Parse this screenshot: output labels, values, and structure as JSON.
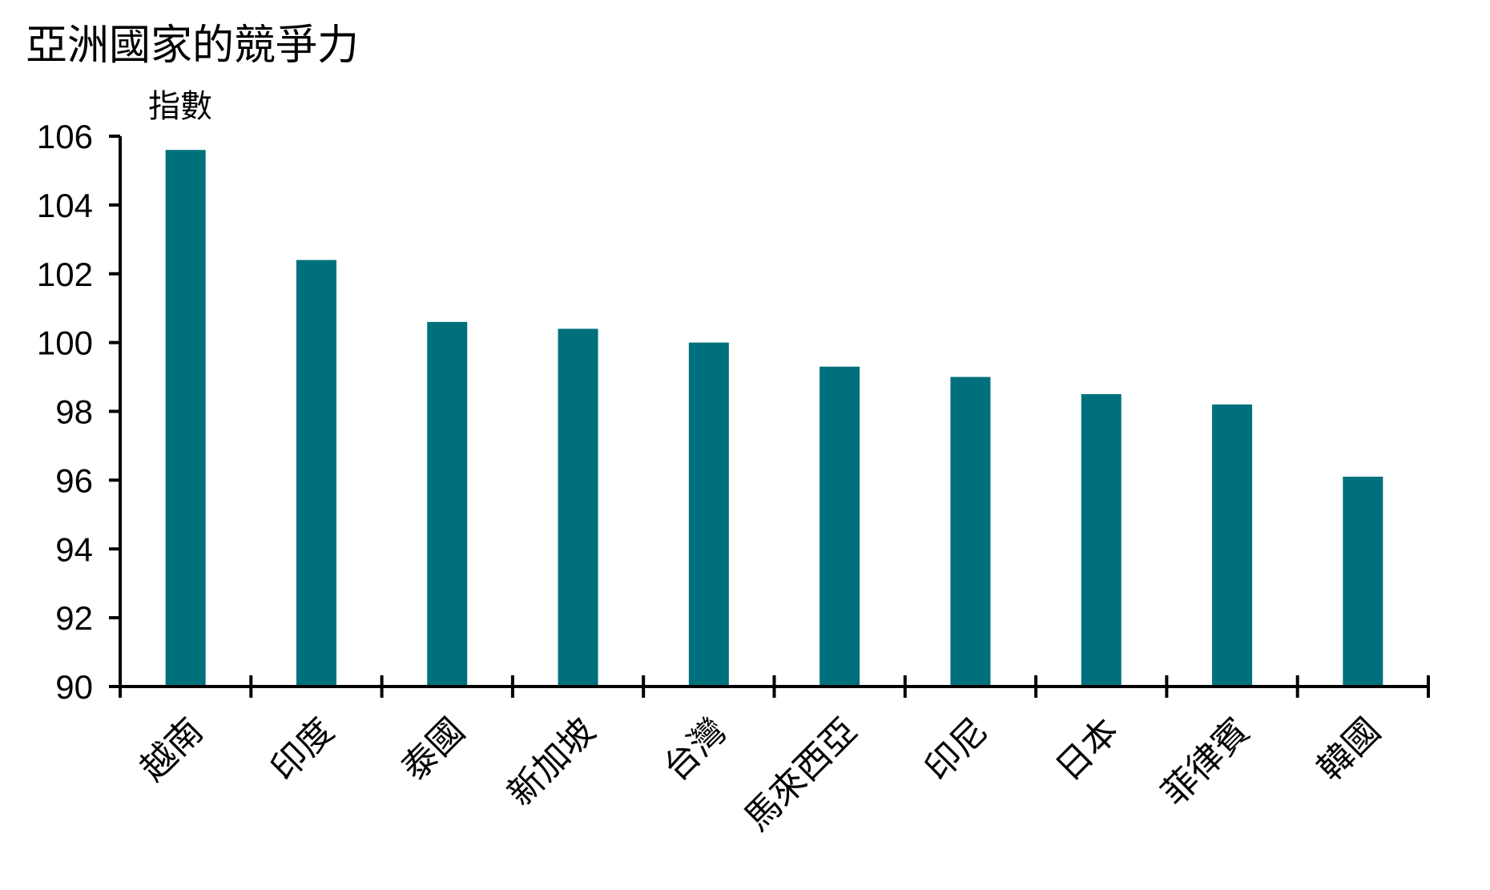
{
  "chart_data": {
    "type": "bar",
    "title": "亞洲國家的競爭力",
    "ylabel": "指數",
    "xlabel": "",
    "categories": [
      "越南",
      "印度",
      "泰國",
      "新加坡",
      "台灣",
      "馬來西亞",
      "印尼",
      "日本",
      "菲律賓",
      "韓國"
    ],
    "values": [
      105.6,
      102.4,
      100.6,
      100.4,
      100.0,
      99.3,
      99.0,
      98.5,
      98.2,
      96.1
    ],
    "ylim": [
      90,
      106
    ],
    "yticks": [
      "90",
      "92",
      "94",
      "96",
      "98",
      "100",
      "102",
      "104",
      "106"
    ],
    "grid": false,
    "bar_color": "#00717C",
    "axis_color": "#000000"
  }
}
